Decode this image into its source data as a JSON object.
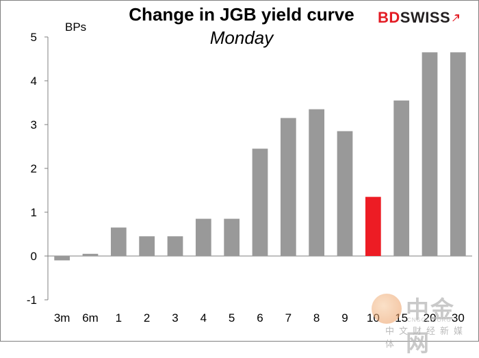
{
  "chart_data": {
    "type": "bar",
    "title": "Change in JGB yield curve",
    "subtitle": "Monday",
    "ylabel": "BPs",
    "xlabel": "",
    "categories": [
      "3m",
      "6m",
      "1",
      "2",
      "3",
      "4",
      "5",
      "6",
      "7",
      "8",
      "9",
      "10",
      "15",
      "20",
      "30"
    ],
    "values": [
      -0.1,
      0.05,
      0.65,
      0.45,
      0.45,
      0.85,
      0.85,
      2.45,
      3.15,
      3.35,
      2.85,
      1.35,
      3.55,
      4.65,
      4.65
    ],
    "highlight_category": "10",
    "ylim": [
      -1,
      5
    ],
    "yticks": [
      -1,
      0,
      1,
      2,
      3,
      4,
      5
    ],
    "grid": false,
    "legend": "none",
    "colors": {
      "bar": "#999999",
      "highlight": "#ed1c24",
      "axis": "#7f7f7f"
    }
  },
  "branding": {
    "logo_bd": "BD",
    "logo_swiss": "SWISS",
    "logo_icon": "arrow-up-right-icon",
    "watermark_main": "中金网",
    "watermark_domain": "CNGOLD.ORG",
    "watermark_sub": "中文财经新媒体"
  }
}
